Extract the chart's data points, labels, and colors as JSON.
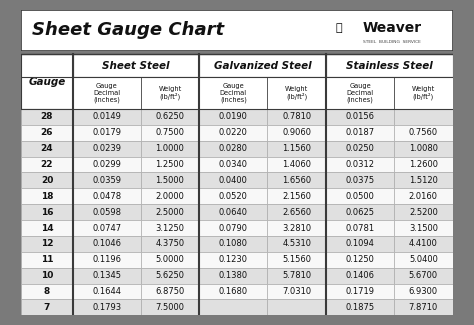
{
  "title": "Sheet Gauge Chart",
  "bg_outer": "#7a7a7a",
  "bg_white": "#ffffff",
  "bg_header_section": "#d4d4d4",
  "bg_subheader": "#e8e8e8",
  "bg_row_odd": "#e0e0e0",
  "bg_row_even": "#f8f8f8",
  "border_dark": "#3a3a3a",
  "border_mid": "#666666",
  "text_dark": "#1a1a1a",
  "gauges": [
    28,
    26,
    24,
    22,
    20,
    18,
    16,
    14,
    12,
    11,
    10,
    8,
    7
  ],
  "sheet_steel_decimal": [
    "0.0149",
    "0.0179",
    "0.0239",
    "0.0299",
    "0.0359",
    "0.0478",
    "0.0598",
    "0.0747",
    "0.1046",
    "0.1196",
    "0.1345",
    "0.1644",
    "0.1793"
  ],
  "sheet_steel_weight": [
    "0.6250",
    "0.7500",
    "1.0000",
    "1.2500",
    "1.5000",
    "2.0000",
    "2.5000",
    "3.1250",
    "4.3750",
    "5.0000",
    "5.6250",
    "6.8750",
    "7.5000"
  ],
  "galvanized_decimal": [
    "0.0190",
    "0.0220",
    "0.0280",
    "0.0340",
    "0.0400",
    "0.0520",
    "0.0640",
    "0.0790",
    "0.1080",
    "0.1230",
    "0.1380",
    "0.1680",
    ""
  ],
  "galvanized_weight": [
    "0.7810",
    "0.9060",
    "1.1560",
    "1.4060",
    "1.6560",
    "2.1560",
    "2.6560",
    "3.2810",
    "4.5310",
    "5.1560",
    "5.7810",
    "7.0310",
    ""
  ],
  "stainless_decimal": [
    "0.0156",
    "0.0187",
    "0.0250",
    "0.0312",
    "0.0375",
    "0.0500",
    "0.0625",
    "0.0781",
    "0.1094",
    "0.1250",
    "0.1406",
    "0.1719",
    "0.1875"
  ],
  "stainless_weight": [
    "",
    "0.7560",
    "1.0080",
    "1.2600",
    "1.5120",
    "2.0160",
    "2.5200",
    "3.1500",
    "4.4100",
    "5.0400",
    "5.6700",
    "6.9300",
    "7.8710"
  ],
  "figsize": [
    4.74,
    3.25
  ],
  "dpi": 100
}
